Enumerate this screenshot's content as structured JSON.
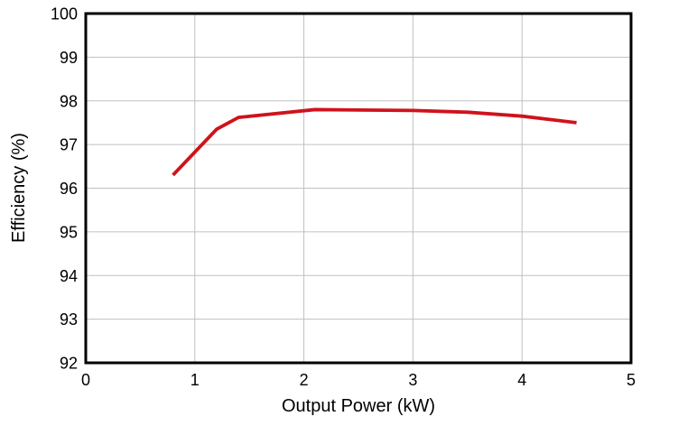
{
  "chart_data": {
    "type": "line",
    "title": "",
    "xlabel": "Output Power (kW)",
    "ylabel": "Efficiency (%)",
    "xlim": [
      0,
      5
    ],
    "ylim": [
      92,
      100
    ],
    "xticks": [
      "0",
      "1",
      "2",
      "3",
      "4",
      "5"
    ],
    "yticks": [
      "92",
      "93",
      "94",
      "95",
      "96",
      "97",
      "98",
      "99",
      "100"
    ],
    "grid": true,
    "legend": false,
    "series": [
      {
        "name": "Efficiency",
        "color": "#D0121B",
        "x": [
          0.8,
          1.2,
          1.4,
          2.1,
          3.0,
          3.5,
          4.0,
          4.5
        ],
        "y": [
          96.3,
          97.35,
          97.62,
          97.8,
          97.78,
          97.74,
          97.65,
          97.5
        ]
      }
    ]
  },
  "colors": {
    "line": "#D0121B",
    "grid": "#C0C0C0",
    "frame": "#000000",
    "background": "#FFFFFF",
    "text": "#000000"
  }
}
